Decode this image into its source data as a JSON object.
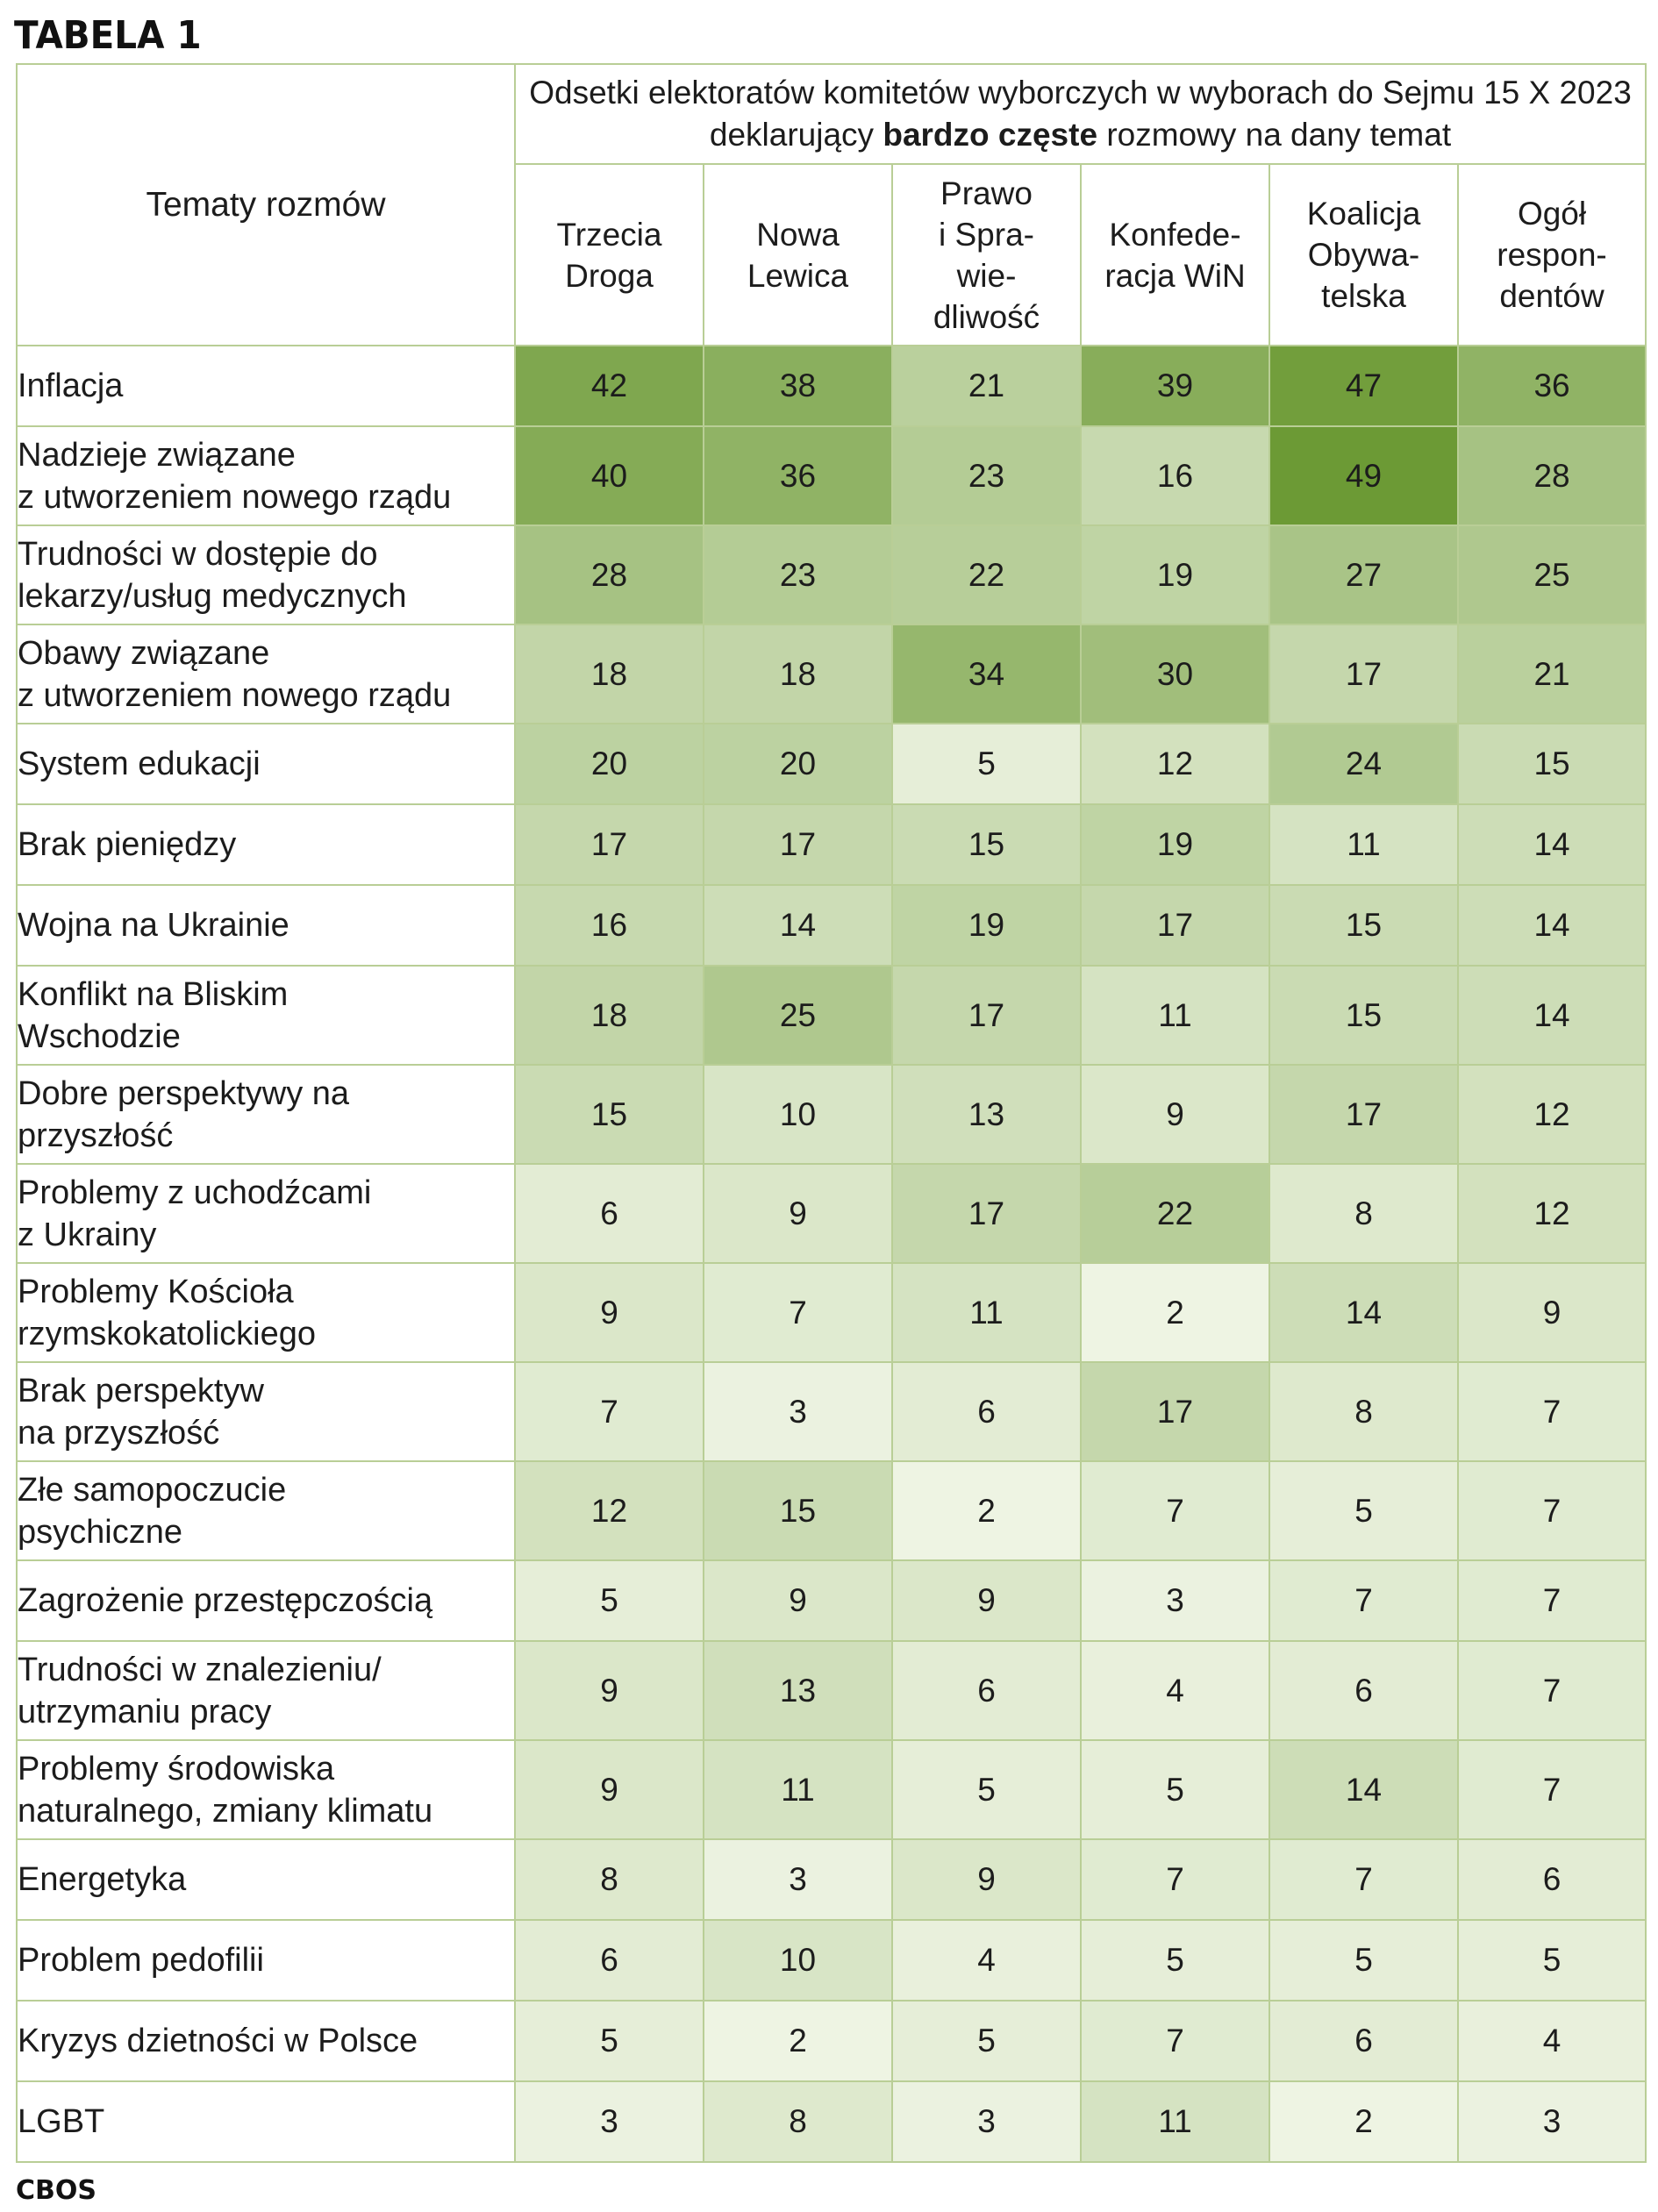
{
  "title": "TABELA 1",
  "source": "CBOS",
  "header": {
    "topics_label": "Tematy rozmów",
    "group_label_before": "Odsetki elektoratów komitetów wyborczych w wyborach do Sejmu 15 X 2023 deklarujący ",
    "group_label_bold": "bardzo częste",
    "group_label_after": " rozmowy na dany temat",
    "columns": [
      [
        "Trzecia",
        "Droga"
      ],
      [
        "Nowa",
        "Lewica"
      ],
      [
        "Prawo",
        "i Spra-",
        "wie-",
        "dliwość"
      ],
      [
        "Konfede-",
        "racja WiN"
      ],
      [
        "Koalicja",
        "Obywa-",
        "telska"
      ],
      [
        "Ogół",
        "respon-",
        "dentów"
      ]
    ]
  },
  "colors": {
    "border": "#b9ce96",
    "scale_min": "#f1f6e7",
    "scale_max": "#6c9a35"
  },
  "rows": [
    {
      "topic": [
        "Inflacja"
      ],
      "values": [
        42,
        38,
        21,
        39,
        47,
        36
      ]
    },
    {
      "topic": [
        "Nadzieje związane",
        "z utworzeniem nowego rządu"
      ],
      "values": [
        40,
        36,
        23,
        16,
        49,
        28
      ]
    },
    {
      "topic": [
        "Trudności w dostępie do",
        "lekarzy/usług medycznych"
      ],
      "values": [
        28,
        23,
        22,
        19,
        27,
        25
      ]
    },
    {
      "topic": [
        "Obawy związane",
        "z utworzeniem nowego rządu"
      ],
      "values": [
        18,
        18,
        34,
        30,
        17,
        21
      ]
    },
    {
      "topic": [
        "System edukacji"
      ],
      "values": [
        20,
        20,
        5,
        12,
        24,
        15
      ]
    },
    {
      "topic": [
        "Brak pieniędzy"
      ],
      "values": [
        17,
        17,
        15,
        19,
        11,
        14
      ]
    },
    {
      "topic": [
        "Wojna na Ukrainie"
      ],
      "values": [
        16,
        14,
        19,
        17,
        15,
        14
      ]
    },
    {
      "topic": [
        "Konflikt na Bliskim",
        "Wschodzie"
      ],
      "values": [
        18,
        25,
        17,
        11,
        15,
        14
      ]
    },
    {
      "topic": [
        "Dobre perspektywy na",
        "przyszłość"
      ],
      "values": [
        15,
        10,
        13,
        9,
        17,
        12
      ]
    },
    {
      "topic": [
        "Problemy z uchodźcami",
        "z Ukrainy"
      ],
      "values": [
        6,
        9,
        17,
        22,
        8,
        12
      ]
    },
    {
      "topic": [
        "Problemy Kościoła",
        "rzymskokatolickiego"
      ],
      "values": [
        9,
        7,
        11,
        2,
        14,
        9
      ]
    },
    {
      "topic": [
        "Brak perspektyw",
        "na przyszłość"
      ],
      "values": [
        7,
        3,
        6,
        17,
        8,
        7
      ]
    },
    {
      "topic": [
        "Złe samopoczucie",
        "psychiczne"
      ],
      "values": [
        12,
        15,
        2,
        7,
        5,
        7
      ]
    },
    {
      "topic": [
        "Zagrożenie przestępczością"
      ],
      "values": [
        5,
        9,
        9,
        3,
        7,
        7
      ]
    },
    {
      "topic": [
        "Trudności w znalezieniu/",
        "utrzymaniu pracy"
      ],
      "values": [
        9,
        13,
        6,
        4,
        6,
        7
      ]
    },
    {
      "topic": [
        "Problemy środowiska",
        "naturalnego, zmiany klimatu"
      ],
      "values": [
        9,
        11,
        5,
        5,
        14,
        7
      ]
    },
    {
      "topic": [
        "Energetyka"
      ],
      "values": [
        8,
        3,
        9,
        7,
        7,
        6
      ]
    },
    {
      "topic": [
        "Problem pedofilii"
      ],
      "values": [
        6,
        10,
        4,
        5,
        5,
        5
      ]
    },
    {
      "topic": [
        "Kryzys dzietności w Polsce"
      ],
      "values": [
        5,
        2,
        5,
        7,
        6,
        4
      ]
    },
    {
      "topic": [
        "LGBT"
      ],
      "values": [
        3,
        8,
        3,
        11,
        2,
        3
      ]
    }
  ]
}
